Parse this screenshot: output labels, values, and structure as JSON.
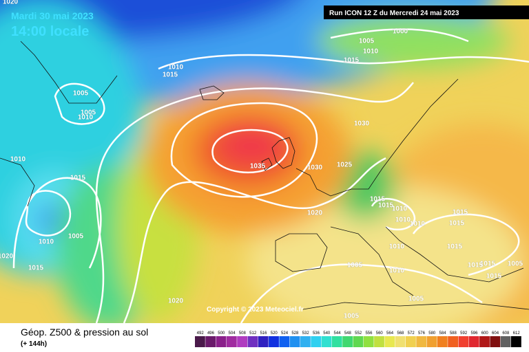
{
  "header": {
    "date": "Mardi 30 mai 2023",
    "time": "14:00 locale",
    "run": "Run ICON 12 Z du Mercredi 24 mai 2023"
  },
  "footer": {
    "title": "Géop. Z500 & pression au sol",
    "lead": "(+ 144h)"
  },
  "copyright": "Copyright © 2023 Meteociel.fr",
  "isobar_labels": [
    "1020",
    "1000",
    "1005",
    "1010",
    "1015",
    "1010",
    "1015",
    "1005",
    "1005",
    "1010",
    "1030",
    "1010",
    "1035",
    "1030",
    "1025",
    "1015",
    "1015",
    "1015",
    "1010",
    "1020",
    "1010",
    "1010",
    "1015",
    "1015",
    "1005",
    "1010",
    "1010",
    "1015",
    "1020",
    "1015",
    "1005",
    "1010",
    "1015",
    "1015",
    "1015",
    "1005",
    "1020",
    "1005",
    "1005"
  ],
  "colorbar": {
    "labels": [
      492,
      496,
      500,
      504,
      508,
      512,
      516,
      520,
      524,
      528,
      532,
      536,
      540,
      544,
      548,
      552,
      556,
      560,
      564,
      568,
      572,
      576,
      580,
      584,
      588,
      592,
      596,
      600,
      604,
      608,
      612
    ],
    "colors": [
      "#4a1a4a",
      "#6a1a6a",
      "#8a208a",
      "#a02ca0",
      "#b03cc0",
      "#7030c0",
      "#3020c0",
      "#1030e0",
      "#1060f0",
      "#2090f0",
      "#30b0f0",
      "#30d0f0",
      "#30e0d0",
      "#30e0a0",
      "#40d870",
      "#60d850",
      "#90e040",
      "#c0e040",
      "#e8e850",
      "#f0e070",
      "#f0d050",
      "#f0b840",
      "#f0a030",
      "#f08020",
      "#f06020",
      "#f04030",
      "#e02830",
      "#b01818",
      "#801010",
      "#606060",
      "#000000"
    ]
  }
}
